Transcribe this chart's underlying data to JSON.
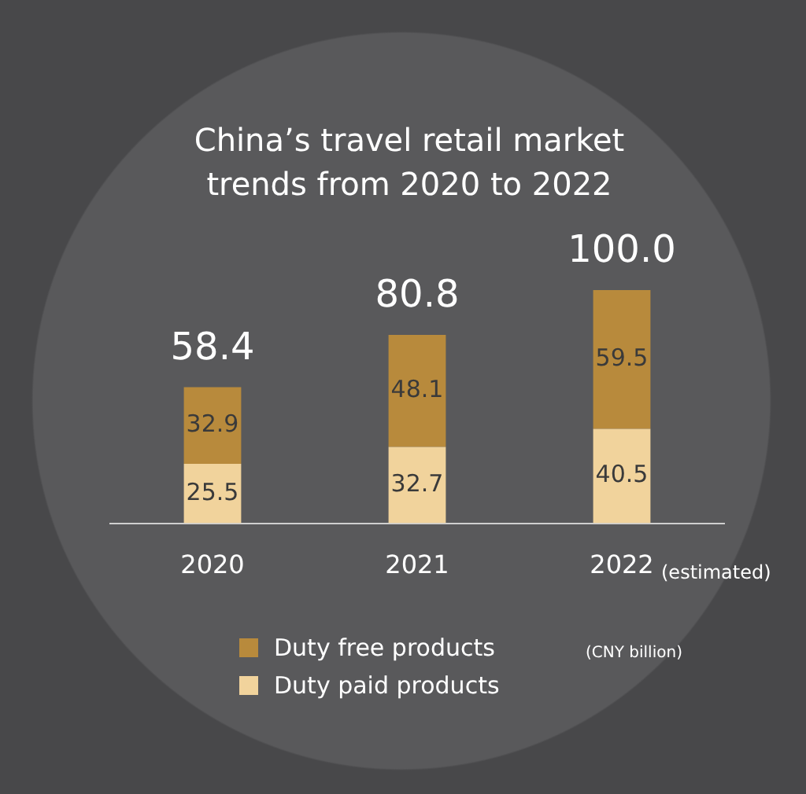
{
  "chart_data": {
    "type": "bar",
    "title": "China’s travel retail market trends from 2020 to 2022",
    "categories": [
      "2020",
      "2021",
      "2022"
    ],
    "stacked": true,
    "data_labels": true,
    "legend": "bottom",
    "grid": false,
    "tick_labels": "x",
    "series": [
      {
        "name": "Duty paid products",
        "color": "#f1d39c",
        "values": [
          25.5,
          32.7,
          40.5
        ]
      },
      {
        "name": "Duty free products",
        "color": "#b88a3c",
        "values": [
          32.9,
          48.1,
          59.5
        ]
      }
    ],
    "totals": [
      "58.4",
      "80.8",
      "100.0"
    ],
    "annotations": [
      "(estimated)",
      "(CNY billion)"
    ]
  }
}
